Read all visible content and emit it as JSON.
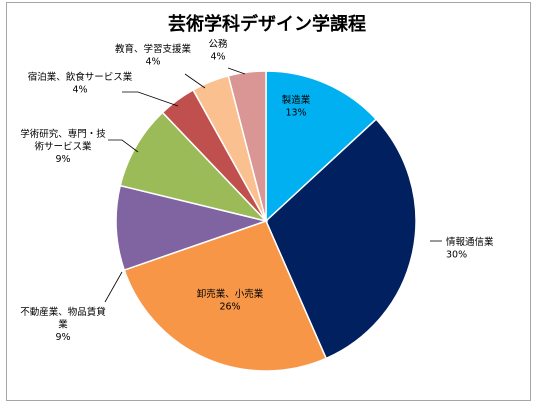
{
  "chart_data": {
    "type": "pie",
    "title": "芸術学科デザイン学課程",
    "slices": [
      {
        "label": "製造業",
        "label_lines": [
          "製造業"
        ],
        "value": 13,
        "value_text": "13%",
        "color": "#00b0f0"
      },
      {
        "label": "情報通信業",
        "label_lines": [
          "情報通信業"
        ],
        "value": 30,
        "value_text": "30%",
        "color": "#002060"
      },
      {
        "label": "卸売業、小売業",
        "label_lines": [
          "卸売業、小売業"
        ],
        "value": 26,
        "value_text": "26%",
        "color": "#f79646"
      },
      {
        "label": "不動産業、物品賃貸業",
        "label_lines": [
          "不動産業、物品賃貸",
          "業"
        ],
        "value": 9,
        "value_text": "9%",
        "color": "#8064a2"
      },
      {
        "label": "学術研究、専門・技術サービス業",
        "label_lines": [
          "学術研究、専門・技",
          "術サービス業"
        ],
        "value": 9,
        "value_text": "9%",
        "color": "#9bbb59"
      },
      {
        "label": "宿泊業、飲食サービス業",
        "label_lines": [
          "宿泊業、飲食サービス業"
        ],
        "value": 4,
        "value_text": "4%",
        "color": "#c0504d"
      },
      {
        "label": "教育、学習支援業",
        "label_lines": [
          "教育、学習支援業"
        ],
        "value": 4,
        "value_text": "4%",
        "color": "#fac090"
      },
      {
        "label": "公務",
        "label_lines": [
          "公務"
        ],
        "value": 4,
        "value_text": "4%",
        "color": "#d99694"
      }
    ]
  }
}
